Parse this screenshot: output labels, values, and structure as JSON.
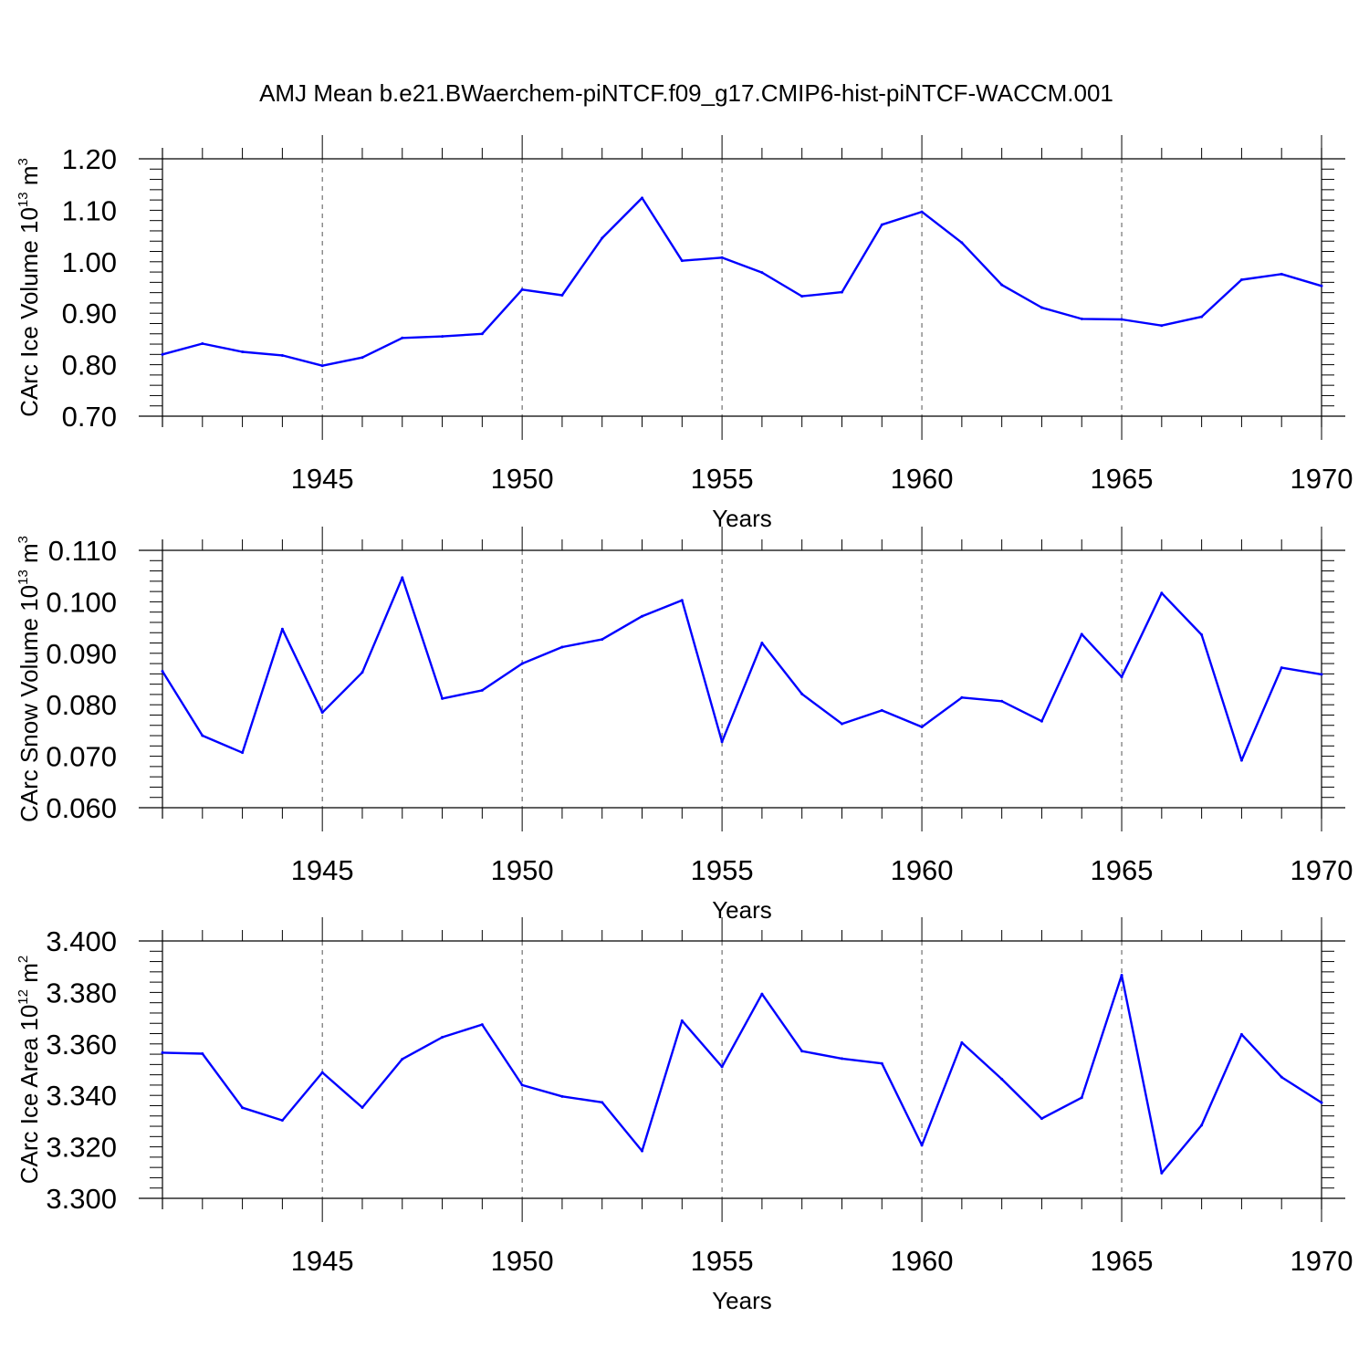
{
  "title": "AMJ Mean b.e21.BWaerchem-piNTCF.f09_g17.CMIP6-hist-piNTCF-WACCM.001",
  "colors": {
    "line": "#0000ff",
    "axis": "#000000",
    "grid": "#555555"
  },
  "chart_data": [
    {
      "type": "line",
      "xlabel": "Years",
      "ylabel": {
        "prefix": "CArc Ice Volume 10",
        "exp": "13",
        "suffix": " m",
        "unit_exp": "3"
      },
      "xlim": [
        1941,
        1970
      ],
      "ylim": [
        0.7,
        1.2
      ],
      "x_ticks": [
        1945,
        1950,
        1955,
        1960,
        1965,
        1970
      ],
      "y_ticks": [
        "0.70",
        "0.80",
        "0.90",
        "1.00",
        "1.10",
        "1.20"
      ],
      "y_minor_step": 0.02,
      "grid": "x-dashed",
      "x": [
        1941,
        1942,
        1943,
        1944,
        1945,
        1946,
        1947,
        1948,
        1949,
        1950,
        1951,
        1952,
        1953,
        1954,
        1955,
        1956,
        1957,
        1958,
        1959,
        1960,
        1961,
        1962,
        1963,
        1964,
        1965,
        1966,
        1967,
        1968,
        1969,
        1970
      ],
      "values": [
        0.82,
        0.841,
        0.825,
        0.818,
        0.798,
        0.814,
        0.852,
        0.855,
        0.86,
        0.946,
        0.935,
        1.046,
        1.124,
        1.002,
        1.008,
        0.979,
        0.933,
        0.941,
        1.072,
        1.097,
        1.037,
        0.955,
        0.911,
        0.889,
        0.888,
        0.876,
        0.893,
        0.965,
        0.976,
        0.953
      ]
    },
    {
      "type": "line",
      "xlabel": "Years",
      "ylabel": {
        "prefix": "CArc Snow Volume 10",
        "exp": "13",
        "suffix": " m",
        "unit_exp": "3"
      },
      "xlim": [
        1941,
        1970
      ],
      "ylim": [
        0.06,
        0.11
      ],
      "x_ticks": [
        1945,
        1950,
        1955,
        1960,
        1965,
        1970
      ],
      "y_ticks": [
        "0.060",
        "0.070",
        "0.080",
        "0.090",
        "0.100",
        "0.110"
      ],
      "y_minor_step": 0.002,
      "grid": "x-dashed",
      "x": [
        1941,
        1942,
        1943,
        1944,
        1945,
        1946,
        1947,
        1948,
        1949,
        1950,
        1951,
        1952,
        1953,
        1954,
        1955,
        1956,
        1957,
        1958,
        1959,
        1960,
        1961,
        1962,
        1963,
        1964,
        1965,
        1966,
        1967,
        1968,
        1969,
        1970
      ],
      "values": [
        0.0865,
        0.074,
        0.0707,
        0.0947,
        0.0785,
        0.0863,
        0.1047,
        0.0812,
        0.0828,
        0.088,
        0.0912,
        0.0927,
        0.0972,
        0.1003,
        0.0728,
        0.092,
        0.0821,
        0.0763,
        0.0789,
        0.0757,
        0.0814,
        0.0807,
        0.0768,
        0.0937,
        0.0854,
        0.1017,
        0.0936,
        0.0692,
        0.0872,
        0.0859
      ]
    },
    {
      "type": "line",
      "xlabel": "Years",
      "ylabel": {
        "prefix": "CArc Ice Area 10",
        "exp": "12",
        "suffix": " m",
        "unit_exp": "2"
      },
      "xlim": [
        1941,
        1970
      ],
      "ylim": [
        3.3,
        3.4
      ],
      "x_ticks": [
        1945,
        1950,
        1955,
        1960,
        1965,
        1970
      ],
      "y_ticks": [
        "3.300",
        "3.320",
        "3.340",
        "3.360",
        "3.380",
        "3.400"
      ],
      "y_minor_step": 0.004,
      "grid": "x-dashed",
      "x": [
        1941,
        1942,
        1943,
        1944,
        1945,
        1946,
        1947,
        1948,
        1949,
        1950,
        1951,
        1952,
        1953,
        1954,
        1955,
        1956,
        1957,
        1958,
        1959,
        1960,
        1961,
        1962,
        1963,
        1964,
        1965,
        1966,
        1967,
        1968,
        1969,
        1970
      ],
      "values": [
        3.3566,
        3.3562,
        3.3352,
        3.3303,
        3.3489,
        3.3353,
        3.3541,
        3.3626,
        3.3675,
        3.344,
        3.3396,
        3.3373,
        3.3184,
        3.369,
        3.3511,
        3.3794,
        3.3572,
        3.3543,
        3.3524,
        3.3206,
        3.3605,
        3.3463,
        3.331,
        3.3391,
        3.3867,
        3.3098,
        3.3284,
        3.3637,
        3.3471,
        3.3372
      ]
    }
  ]
}
